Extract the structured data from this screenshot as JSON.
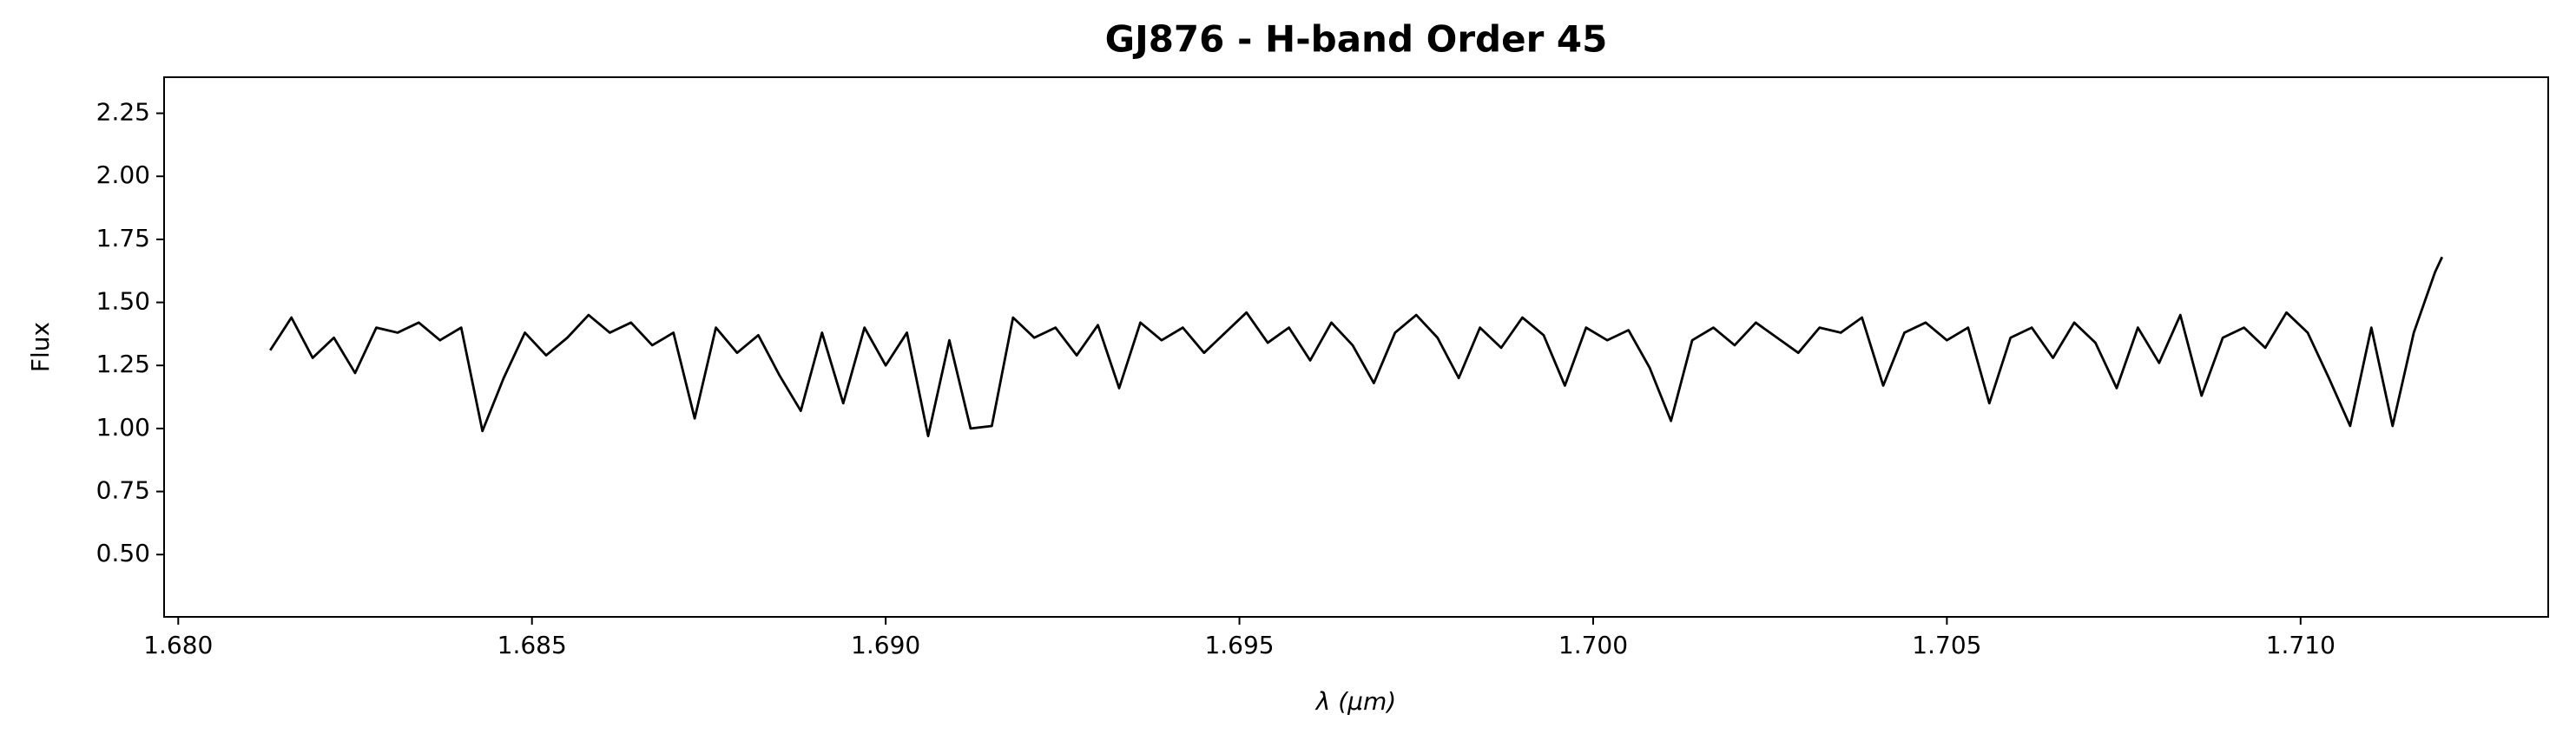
{
  "chart_data": {
    "type": "line",
    "title": "GJ876 - H-band Order 45",
    "xlabel": "λ (μm)",
    "ylabel": "Flux",
    "x": [
      1.6813,
      1.6816,
      1.6819,
      1.6822,
      1.6825,
      1.6828,
      1.6831,
      1.6834,
      1.6837,
      1.684,
      1.6843,
      1.6846,
      1.6849,
      1.6852,
      1.6855,
      1.6858,
      1.6861,
      1.6864,
      1.6867,
      1.687,
      1.6873,
      1.6876,
      1.6879,
      1.6882,
      1.6885,
      1.6888,
      1.6891,
      1.6894,
      1.6897,
      1.69,
      1.6903,
      1.6906,
      1.6909,
      1.6912,
      1.6915,
      1.6918,
      1.6921,
      1.6924,
      1.6927,
      1.693,
      1.6933,
      1.6936,
      1.6939,
      1.6942,
      1.6945,
      1.6948,
      1.6951,
      1.6954,
      1.6957,
      1.696,
      1.6963,
      1.6966,
      1.6969,
      1.6972,
      1.6975,
      1.6978,
      1.6981,
      1.6984,
      1.6987,
      1.699,
      1.6993,
      1.6996,
      1.6999,
      1.7002,
      1.7005,
      1.7008,
      1.7011,
      1.7014,
      1.7017,
      1.702,
      1.7023,
      1.7026,
      1.7029,
      1.7032,
      1.7035,
      1.7038,
      1.7041,
      1.7044,
      1.7047,
      1.705,
      1.7053,
      1.7056,
      1.7059,
      1.7062,
      1.7065,
      1.7068,
      1.7071,
      1.7074,
      1.7077,
      1.708,
      1.7083,
      1.7086,
      1.7089,
      1.7092,
      1.7095,
      1.7098,
      1.7101,
      1.7104,
      1.7107,
      1.711,
      1.7113,
      1.7116,
      1.7119,
      1.712
    ],
    "values": [
      1.31,
      1.44,
      1.28,
      1.36,
      1.22,
      1.4,
      1.38,
      1.42,
      1.35,
      1.4,
      0.99,
      1.2,
      1.38,
      1.29,
      1.36,
      1.45,
      1.38,
      1.42,
      1.33,
      1.38,
      1.04,
      1.4,
      1.3,
      1.37,
      1.21,
      1.07,
      1.38,
      1.1,
      1.4,
      1.25,
      1.38,
      0.97,
      1.35,
      1.0,
      1.01,
      1.44,
      1.36,
      1.4,
      1.29,
      1.41,
      1.16,
      1.42,
      1.35,
      1.4,
      1.3,
      1.38,
      1.46,
      1.34,
      1.4,
      1.27,
      1.42,
      1.33,
      1.18,
      1.38,
      1.45,
      1.36,
      1.2,
      1.4,
      1.32,
      1.44,
      1.37,
      1.17,
      1.4,
      1.35,
      1.39,
      1.24,
      1.03,
      1.35,
      1.4,
      1.33,
      1.42,
      1.36,
      1.3,
      1.4,
      1.38,
      1.44,
      1.17,
      1.38,
      1.42,
      1.35,
      1.4,
      1.1,
      1.36,
      1.4,
      1.28,
      1.42,
      1.34,
      1.16,
      1.4,
      1.26,
      1.45,
      1.13,
      1.36,
      1.4,
      1.32,
      1.46,
      1.38,
      1.2,
      1.01,
      1.4,
      1.01,
      1.38,
      1.62,
      1.68
    ],
    "color": "#000000",
    "xlim": [
      1.6798,
      1.7135
    ],
    "ylim": [
      0.253,
      2.393
    ],
    "xticks": [
      {
        "value": 1.68,
        "label": "1.680"
      },
      1.685,
      {
        "value": 1.69,
        "label": "1.690"
      },
      1.695,
      {
        "value": 1.7,
        "label": "1.700"
      },
      1.705,
      {
        "value": 1.71,
        "label": "1.710"
      }
    ],
    "yticks": [
      {
        "value": 0.5,
        "label": "0.50"
      },
      0.75,
      {
        "value": 1.0,
        "label": "1.00"
      },
      1.25,
      {
        "value": 1.5,
        "label": "1.50"
      },
      1.75,
      {
        "value": 2.0,
        "label": "2.00"
      },
      2.25
    ],
    "grid": false
  }
}
